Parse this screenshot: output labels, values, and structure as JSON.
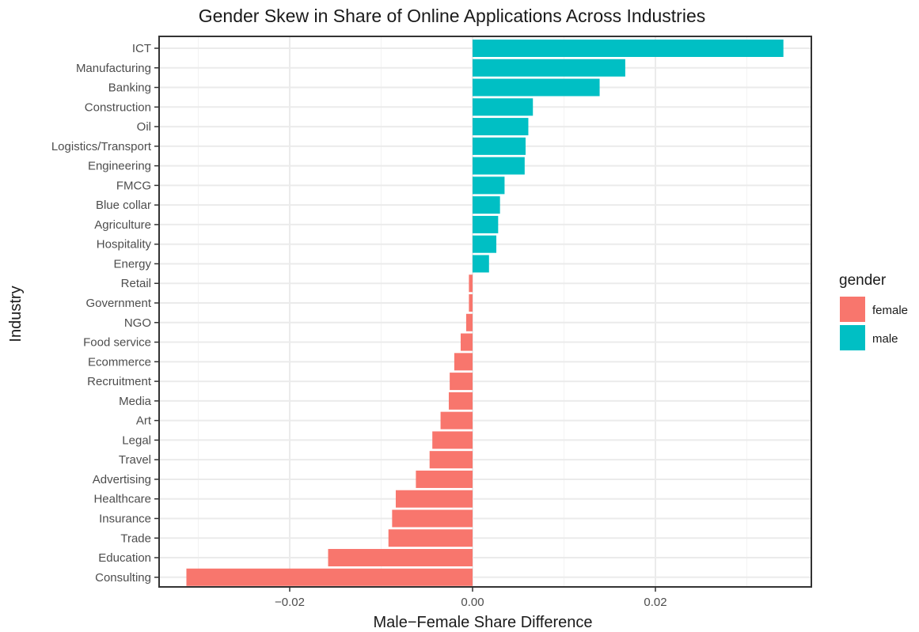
{
  "chart_data": {
    "type": "bar",
    "orientation": "horizontal",
    "title": "Gender Skew in Share of Online Applications Across Industries",
    "xlabel": "Male−Female Share Difference",
    "ylabel": "Industry",
    "xlim": [
      -0.035,
      0.037
    ],
    "x_ticks": [
      -0.02,
      0,
      0.02
    ],
    "x_tick_labels": [
      "−0.02",
      "0.00",
      "0.02"
    ],
    "grid": true,
    "legend": {
      "title": "gender",
      "placement": "right",
      "entries": [
        {
          "label": "female",
          "color": "#F8766D"
        },
        {
          "label": "male",
          "color": "#00BFC4"
        }
      ]
    },
    "bars": [
      {
        "category": "ICT",
        "value": 0.034,
        "gender": "male"
      },
      {
        "category": "Manufacturing",
        "value": 0.0167,
        "gender": "male"
      },
      {
        "category": "Banking",
        "value": 0.0139,
        "gender": "male"
      },
      {
        "category": "Construction",
        "value": 0.0066,
        "gender": "male"
      },
      {
        "category": "Oil",
        "value": 0.0061,
        "gender": "male"
      },
      {
        "category": "Logistics/Transport",
        "value": 0.0058,
        "gender": "male"
      },
      {
        "category": "Engineering",
        "value": 0.0057,
        "gender": "male"
      },
      {
        "category": "FMCG",
        "value": 0.0035,
        "gender": "male"
      },
      {
        "category": "Blue collar",
        "value": 0.003,
        "gender": "male"
      },
      {
        "category": "Agriculture",
        "value": 0.0028,
        "gender": "male"
      },
      {
        "category": "Hospitality",
        "value": 0.0026,
        "gender": "male"
      },
      {
        "category": "Energy",
        "value": 0.0018,
        "gender": "male"
      },
      {
        "category": "Retail",
        "value": -0.0004,
        "gender": "female"
      },
      {
        "category": "Government",
        "value": -0.0004,
        "gender": "female"
      },
      {
        "category": "NGO",
        "value": -0.0007,
        "gender": "female"
      },
      {
        "category": "Food service",
        "value": -0.0013,
        "gender": "female"
      },
      {
        "category": "Ecommerce",
        "value": -0.002,
        "gender": "female"
      },
      {
        "category": "Recruitment",
        "value": -0.0025,
        "gender": "female"
      },
      {
        "category": "Media",
        "value": -0.0026,
        "gender": "female"
      },
      {
        "category": "Art",
        "value": -0.0035,
        "gender": "female"
      },
      {
        "category": "Legal",
        "value": -0.0044,
        "gender": "female"
      },
      {
        "category": "Travel",
        "value": -0.0047,
        "gender": "female"
      },
      {
        "category": "Advertising",
        "value": -0.0062,
        "gender": "female"
      },
      {
        "category": "Healthcare",
        "value": -0.0084,
        "gender": "female"
      },
      {
        "category": "Insurance",
        "value": -0.0088,
        "gender": "female"
      },
      {
        "category": "Trade",
        "value": -0.0092,
        "gender": "female"
      },
      {
        "category": "Education",
        "value": -0.0158,
        "gender": "female"
      },
      {
        "category": "Consulting",
        "value": -0.0313,
        "gender": "female"
      }
    ]
  }
}
